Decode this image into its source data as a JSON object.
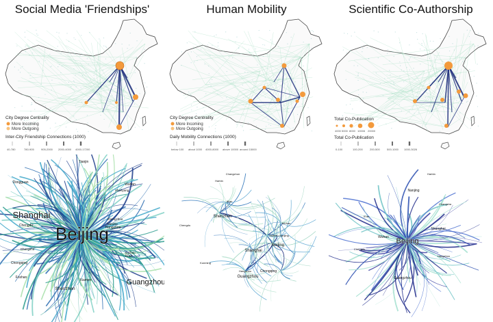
{
  "panels": [
    {
      "title": "Social Media 'Friendships'",
      "legend": {
        "centrality_title": "City Degree Centrality",
        "incoming": "More Incoming",
        "outgoing": "More Outgoing",
        "connections_title": "Inter-City Friendship Connections (1000)",
        "ticks": [
          "40-780",
          "780-905",
          "905-2000",
          "2000-4000",
          "4000-17200"
        ]
      },
      "network_labels": [
        "Beijing",
        "Shanghai",
        "Guangzhou",
        "Shenzhen",
        "Tianjin",
        "Chengdu",
        "Hangzhou",
        "Wuhan",
        "Xi'an",
        "Nanjing",
        "Chongqing",
        "Suzhou",
        "Foshan",
        "Dongguan",
        "Xiamen",
        "Changsha",
        "Zhengzhou",
        "Shenyang"
      ]
    },
    {
      "title": "Human Mobility",
      "legend": {
        "centrality_title": "City Degree Centrality",
        "incoming": "More Incoming",
        "outgoing": "More Outgoing",
        "connections_title": "Daily Mobility Connections (1000)",
        "ticks": [
          "below 100",
          "about 1000",
          "4000-8000",
          "above 10000",
          "around 15000"
        ]
      },
      "network_labels": [
        "Shenzhen",
        "Beijing",
        "Shanghai",
        "Guangzhou",
        "Chongqing",
        "Hangzhou",
        "Xi'an",
        "Wuhan",
        "Chengdu",
        "Suzhou",
        "Nanjing",
        "Harbin",
        "Kunming",
        "Changchun"
      ]
    },
    {
      "title": "Scientific Co-Authorship",
      "legend": {
        "copub_title": "Total Co-Publication",
        "sizes": [
          "4000",
          "5000",
          "8000",
          "10000",
          "20000"
        ],
        "connections_title": "Total Co-Publication",
        "ticks": [
          "0-100",
          "100-200",
          "200-500",
          "500-1000",
          "1000-3026"
        ]
      },
      "network_labels": [
        "Beijing",
        "Nanjing",
        "Shanghai",
        "Wuhan",
        "Guangzhou",
        "Chengdu",
        "Hangzhou",
        "Xi'an",
        "Changsha",
        "Harbin"
      ]
    }
  ],
  "colors": {
    "node_orange": "#f39a3c",
    "edge_dark": "#1a2a7a",
    "edge_teal": "#4bb3b8",
    "edge_light": "#a7e0c4"
  }
}
